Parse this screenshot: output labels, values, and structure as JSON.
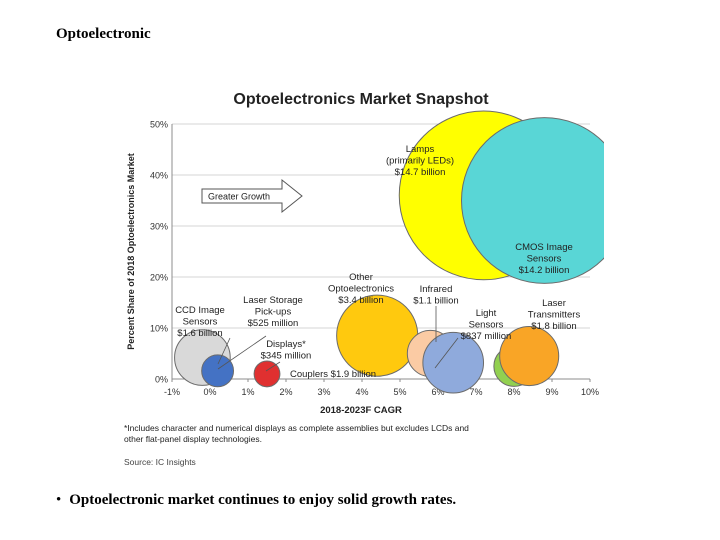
{
  "slide": {
    "title": "Optoelectronic",
    "bullet_marker": "•",
    "bullet": "Optoelectronic market continues to enjoy solid growth rates."
  },
  "chart_data": {
    "type": "bubble",
    "title": "Optoelectronics Market Snapshot",
    "xlabel": "2018-2023F CAGR",
    "ylabel": "Percent Share of 2018 Optoelectronics Market",
    "xlim": [
      -1,
      10
    ],
    "ylim": [
      0,
      50
    ],
    "xticks": [
      "-1%",
      "0%",
      "1%",
      "2%",
      "3%",
      "4%",
      "5%",
      "6%",
      "7%",
      "8%",
      "9%",
      "10%"
    ],
    "yticks": [
      "0%",
      "10%",
      "20%",
      "30%",
      "40%",
      "50%"
    ],
    "arrow_label": "Greater Growth",
    "footnote": [
      "*Includes character and numerical displays as complete assemblies but excludes LCDs and",
      "other flat-panel display technologies."
    ],
    "source": "Source: IC Insights",
    "series": [
      {
        "name": "Lamps (primarily LEDs)",
        "value": "$14.7 billion",
        "x": 7.2,
        "y": 36.0,
        "size": 14.7,
        "color": "#ffff00",
        "label": [
          "Lamps",
          "(primarily LEDs)",
          "$14.7 billion"
        ]
      },
      {
        "name": "CMOS Image Sensors",
        "value": "$14.2 billion",
        "x": 8.8,
        "y": 35.0,
        "size": 14.2,
        "color": "#59d6d6",
        "label": [
          "CMOS Image",
          "Sensors",
          "$14.2  billion"
        ]
      },
      {
        "name": "Other Optoelectronics",
        "value": "$3.4 billion",
        "x": 4.4,
        "y": 8.5,
        "size": 3.4,
        "color": "#ffc90e",
        "label": [
          "Other",
          "Optoelectronics",
          "$3.4 billion"
        ]
      },
      {
        "name": "Infrared",
        "value": "$1.1 billion",
        "x": 5.8,
        "y": 5.0,
        "size": 1.1,
        "color": "#fbcba4",
        "label": [
          "Infrared",
          "$1.1 billion"
        ]
      },
      {
        "name": "Couplers",
        "value": "$1.9 billion",
        "x": 6.4,
        "y": 3.2,
        "size": 1.9,
        "color": "#8faadc",
        "label": [
          "Couplers $1.9 billion"
        ]
      },
      {
        "name": "Light Sensors",
        "value": "$837 million",
        "x": 8.0,
        "y": 2.5,
        "size": 0.837,
        "color": "#92d050",
        "label": [
          "Light",
          "Sensors",
          "$837 million"
        ]
      },
      {
        "name": "Laser Transmitters",
        "value": "$1.8 billion",
        "x": 8.4,
        "y": 4.5,
        "size": 1.8,
        "color": "#f9a526",
        "label": [
          "Laser",
          "Transmitters",
          "$1.8 billion"
        ]
      },
      {
        "name": "CCD Image Sensors",
        "value": "$1.6 billion",
        "x": -0.2,
        "y": 4.2,
        "size": 1.6,
        "color": "#d9d9d9",
        "label": [
          "CCD Image",
          "Sensors",
          "$1.6 billion"
        ]
      },
      {
        "name": "Laser Storage Pick-ups",
        "value": "$525 million",
        "x": 0.2,
        "y": 1.6,
        "size": 0.525,
        "color": "#4472c4",
        "label": [
          "Laser Storage",
          "Pick-ups",
          "$525 million"
        ]
      },
      {
        "name": "Displays*",
        "value": "$345 million",
        "x": 1.5,
        "y": 1.0,
        "size": 0.345,
        "color": "#e03030",
        "label": [
          "Displays*",
          "$345 million"
        ]
      }
    ]
  }
}
